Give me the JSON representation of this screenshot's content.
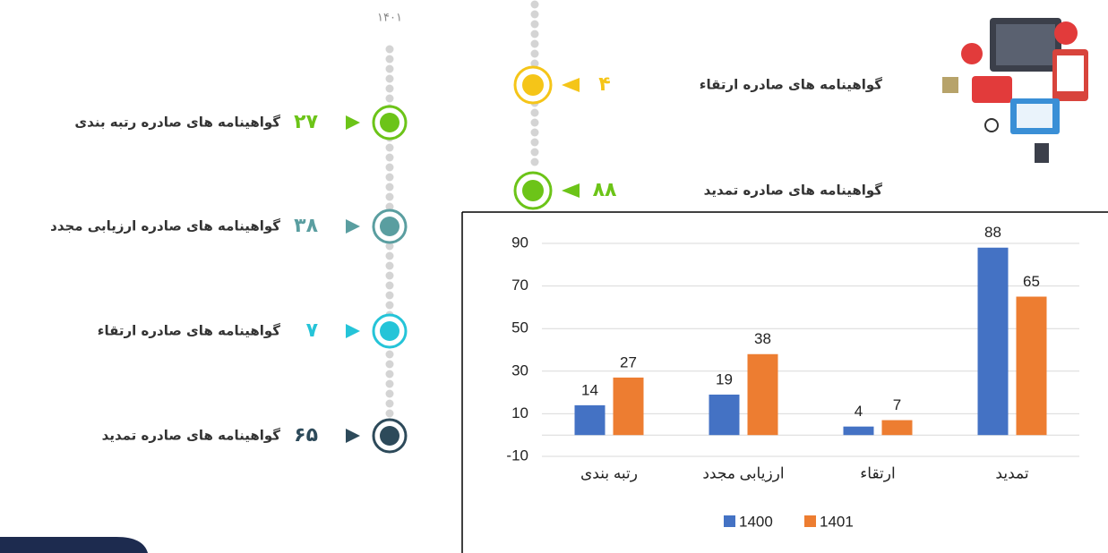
{
  "timeline_left": {
    "year": "۱۴۰۱",
    "items": [
      {
        "label": "گواهینامه های صادره رتبه بندی",
        "value": "۲۷"
      },
      {
        "label": "گواهینامه های صادره ارزیابی مجدد",
        "value": "۳۸"
      },
      {
        "label": "گواهینامه های صادره ارتقاء",
        "value": "۷"
      },
      {
        "label": "گواهینامه های صادره تمدید",
        "value": "۶۵"
      }
    ]
  },
  "timeline_right": {
    "items": [
      {
        "label": "گواهینامه های صادره ارتقاء",
        "value": "۴"
      },
      {
        "label": "گواهینامه های صادره تمدید",
        "value": "۸۸"
      }
    ]
  },
  "chart_data": {
    "type": "bar",
    "categories": [
      "رتبه بندی",
      "ارزیابی مجدد",
      "ارتقاء",
      "تمدید"
    ],
    "series": [
      {
        "name": "1400",
        "color": "#4472c4",
        "values": [
          14,
          19,
          4,
          88
        ]
      },
      {
        "name": "1401",
        "color": "#ed7d31",
        "values": [
          27,
          38,
          7,
          65
        ]
      }
    ],
    "ylim": [
      -10,
      90
    ],
    "yticks": [
      -10,
      10,
      30,
      50,
      70,
      90
    ],
    "grid": true
  }
}
